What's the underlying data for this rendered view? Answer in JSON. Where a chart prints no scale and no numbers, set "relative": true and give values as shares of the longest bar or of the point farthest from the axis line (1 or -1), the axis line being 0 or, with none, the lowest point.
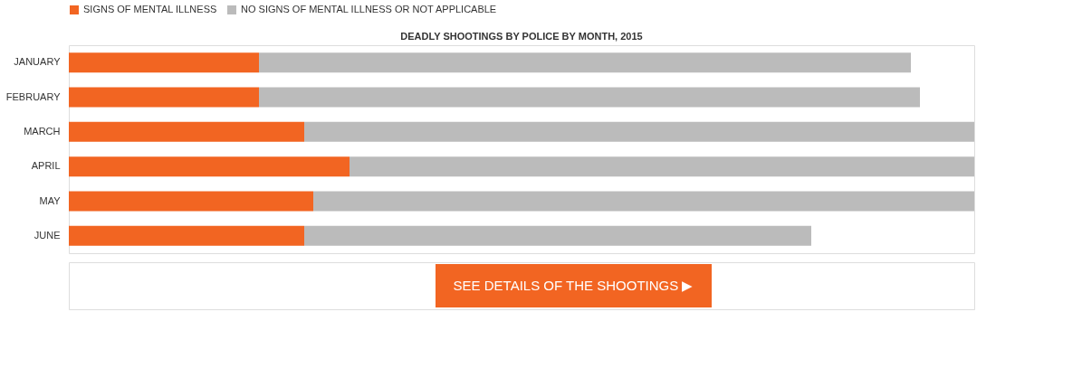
{
  "chart_data": {
    "type": "bar",
    "orientation": "horizontal",
    "stacked": true,
    "relative": true,
    "title": "DEADLY SHOOTINGS BY POLICE BY MONTH, 2015",
    "categories": [
      "JANUARY",
      "FEBRUARY",
      "MARCH",
      "APRIL",
      "MAY",
      "JUNE"
    ],
    "series": [
      {
        "name": "SIGNS OF MENTAL ILLNESS",
        "color": "#f26522",
        "values": [
          0.21,
          0.21,
          0.26,
          0.31,
          0.27,
          0.26
        ]
      },
      {
        "name": "NO SIGNS OF MENTAL ILLNESS OR NOT APPLICABLE",
        "color": "#bbbbbb",
        "values": [
          0.72,
          0.73,
          0.74,
          0.69,
          0.73,
          0.56
        ]
      }
    ],
    "legend": "top",
    "annotations": [
      "SEE DETAILS OF THE SHOOTINGS ▶"
    ]
  }
}
